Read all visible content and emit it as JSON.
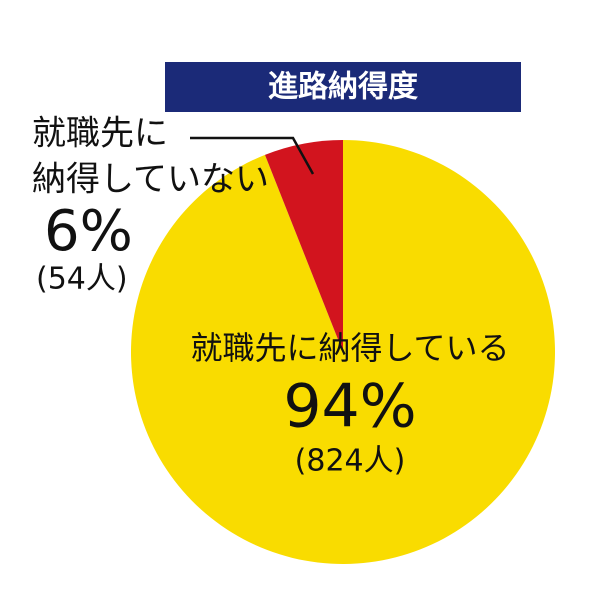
{
  "chart_data": {
    "type": "pie",
    "title": "進路納得度",
    "categories": [
      [
        "就職先に納得している"
      ],
      [
        "就職先に",
        "納得していない"
      ]
    ],
    "values": [
      94,
      6
    ],
    "value_labels": [
      "94%",
      "6%"
    ],
    "count_labels": [
      "(824人)",
      "(54人)"
    ],
    "colors": [
      "#f9dc00",
      "#d2141e"
    ]
  }
}
